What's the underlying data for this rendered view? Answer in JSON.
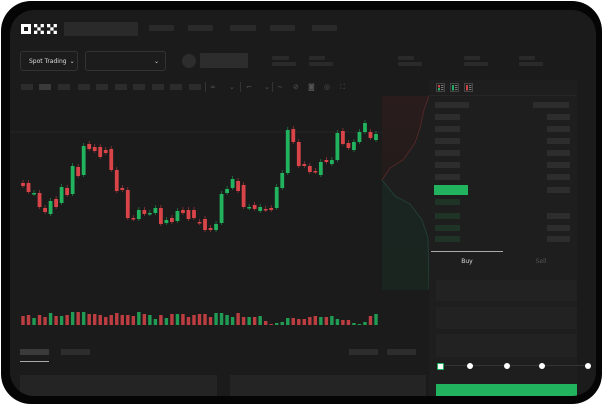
{
  "header": {
    "logo": "OKX"
  },
  "market": {
    "mode_label": "Spot Trading",
    "mode_icon": "chevron-down-icon",
    "pair_icon": "chevron-down-icon"
  },
  "orderbook": {
    "view_icons": [
      "orderbook-both-icon",
      "orderbook-bids-icon",
      "orderbook-asks-icon"
    ]
  },
  "trade": {
    "tabs": [
      {
        "label": "Buy",
        "active": true
      },
      {
        "label": "Sell",
        "active": false
      }
    ],
    "slider_percent": 0,
    "accent": "#22b35e"
  },
  "colors": {
    "up": "#22b35e",
    "down": "#d94448",
    "background": "#1b1b1b"
  },
  "candles": [
    [
      68,
      65
    ],
    [
      68,
      59
    ],
    [
      57,
      58
    ],
    [
      58,
      44
    ],
    [
      43,
      39
    ],
    [
      37,
      50
    ],
    [
      52,
      44
    ],
    [
      48,
      64
    ],
    [
      63,
      56
    ],
    [
      57,
      85
    ],
    [
      84,
      75
    ],
    [
      76,
      105
    ],
    [
      107,
      102
    ],
    [
      104,
      100
    ],
    [
      104,
      94
    ],
    [
      101,
      98
    ],
    [
      102,
      81
    ],
    [
      81,
      60
    ],
    [
      63,
      61
    ],
    [
      61,
      33
    ],
    [
      33,
      32
    ],
    [
      32,
      41
    ],
    [
      41,
      37
    ],
    [
      37,
      38
    ],
    [
      38,
      43
    ],
    [
      43,
      27
    ],
    [
      28,
      31
    ],
    [
      33,
      29
    ],
    [
      30,
      40
    ],
    [
      41,
      38
    ],
    [
      41,
      32
    ],
    [
      41,
      33
    ],
    [
      29,
      28
    ],
    [
      32,
      21
    ],
    [
      23,
      21
    ],
    [
      21,
      27
    ],
    [
      28,
      57
    ],
    [
      58,
      62
    ],
    [
      63,
      72
    ],
    [
      70,
      60
    ],
    [
      66,
      44
    ],
    [
      43,
      44
    ],
    [
      46,
      42
    ],
    [
      40,
      44
    ],
    [
      42,
      41
    ],
    [
      43,
      41
    ],
    [
      43,
      64
    ],
    [
      63,
      78
    ],
    [
      78,
      121
    ],
    [
      122,
      109
    ],
    [
      109,
      85
    ],
    [
      87,
      85
    ],
    [
      85,
      79
    ],
    [
      80,
      79
    ],
    [
      76,
      89
    ],
    [
      91,
      89
    ],
    [
      87,
      91
    ],
    [
      91,
      118
    ],
    [
      120,
      107
    ],
    [
      108,
      103
    ],
    [
      101,
      109
    ],
    [
      109,
      119
    ],
    [
      119,
      128
    ],
    [
      119,
      113
    ],
    [
      111,
      117
    ]
  ],
  "volumes": [
    9,
    10,
    7,
    10,
    8,
    12,
    9,
    9,
    10,
    13,
    13,
    13,
    11,
    11,
    10,
    8,
    10,
    12,
    10,
    10,
    9,
    13,
    11,
    10,
    6,
    10,
    7,
    11,
    11,
    11,
    8,
    10,
    11,
    11,
    8,
    12,
    12,
    10,
    8,
    12,
    8,
    8,
    8,
    9,
    4,
    1,
    2,
    3,
    7,
    7,
    6,
    6,
    8,
    9,
    8,
    8,
    9,
    6,
    5,
    5,
    2,
    1,
    3,
    9,
    11
  ]
}
